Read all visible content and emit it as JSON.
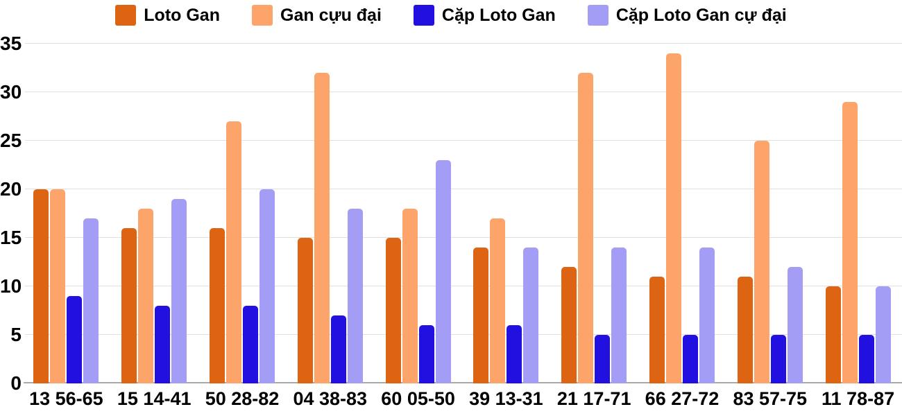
{
  "colors": {
    "background": "#ffffff",
    "gridline": "#e0e0e0",
    "axis_line": "#a9a9a9",
    "text": "#000000"
  },
  "chart_data": {
    "type": "bar",
    "title": "",
    "xlabel": "",
    "ylabel": "",
    "ylim": [
      0,
      35
    ],
    "yticks": [
      0,
      5,
      10,
      15,
      20,
      25,
      30,
      35
    ],
    "grid": true,
    "legend_position": "top-center",
    "categories": [
      "13 56-65",
      "15 14-41",
      "50 28-82",
      "04 38-83",
      "60 05-50",
      "39 13-31",
      "21 17-71",
      "66 27-72",
      "83 57-75",
      "11 78-87"
    ],
    "series": [
      {
        "name": "Loto Gan",
        "color": "#dc6413",
        "values": [
          20,
          16,
          16,
          15,
          15,
          14,
          12,
          11,
          11,
          10
        ]
      },
      {
        "name": "Gan cựu đại",
        "color": "#fca469",
        "values": [
          20,
          18,
          27,
          32,
          18,
          17,
          32,
          34,
          25,
          29
        ]
      },
      {
        "name": "Cặp Loto Gan",
        "color": "#2110df",
        "values": [
          9,
          8,
          8,
          7,
          6,
          6,
          5,
          5,
          5,
          5
        ]
      },
      {
        "name": "Cặp Loto Gan cự đại",
        "color": "#a49df6",
        "values": [
          17,
          19,
          20,
          18,
          23,
          14,
          14,
          14,
          12,
          10
        ]
      }
    ]
  }
}
